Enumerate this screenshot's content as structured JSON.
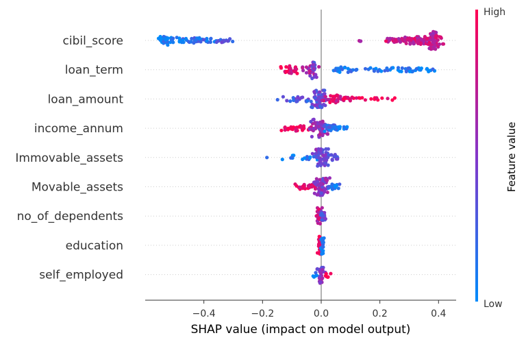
{
  "chart_data": {
    "type": "scatter",
    "subtype": "shap-beeswarm",
    "title": "",
    "xlabel": "SHAP value (impact on model output)",
    "ylabel": "",
    "xlim": [
      -0.6,
      0.46
    ],
    "x_ticks": [
      -0.4,
      -0.2,
      0.0,
      0.2,
      0.4
    ],
    "x_tick_labels": [
      "−0.4",
      "−0.2",
      "0.0",
      "0.2",
      "0.4"
    ],
    "grid": false,
    "colorbar": {
      "title": "Feature value",
      "high_label": "High",
      "low_label": "Low",
      "low_color": "#008bfb",
      "mid_color": "#8436c9",
      "high_color": "#ff0052"
    },
    "features": [
      {
        "name": "cibil_score",
        "clusters": [
          {
            "x": -0.535,
            "spread": 0.012,
            "count": 34,
            "width": 0.52,
            "value": 0.05
          },
          {
            "x": -0.5,
            "spread": 0.015,
            "count": 14,
            "width": 0.35,
            "value": 0.1
          },
          {
            "x": -0.46,
            "spread": 0.02,
            "count": 10,
            "width": 0.22,
            "value": 0.15
          },
          {
            "x": -0.4,
            "spread": 0.03,
            "count": 26,
            "width": 0.3,
            "value": 0.2
          },
          {
            "x": -0.33,
            "spread": 0.025,
            "count": 16,
            "width": 0.22,
            "value": 0.25
          },
          {
            "x": 0.13,
            "spread": 0.008,
            "count": 3,
            "width": 0.1,
            "value": 0.55
          },
          {
            "x": 0.26,
            "spread": 0.025,
            "count": 34,
            "width": 0.22,
            "value": 0.8
          },
          {
            "x": 0.33,
            "spread": 0.025,
            "count": 54,
            "width": 0.42,
            "value": 0.78
          },
          {
            "x": 0.385,
            "spread": 0.012,
            "count": 64,
            "width": 1.0,
            "value": 0.75
          }
        ]
      },
      {
        "name": "loan_term",
        "clusters": [
          {
            "x": -0.1,
            "spread": 0.015,
            "count": 28,
            "width": 0.45,
            "value": 0.88
          },
          {
            "x": -0.04,
            "spread": 0.015,
            "count": 24,
            "width": 0.55,
            "value": 0.65
          },
          {
            "x": -0.025,
            "spread": 0.006,
            "count": 16,
            "width": 1.0,
            "value": 0.4
          },
          {
            "x": 0.08,
            "spread": 0.025,
            "count": 20,
            "width": 0.3,
            "value": 0.1
          },
          {
            "x": 0.22,
            "spread": 0.05,
            "count": 26,
            "width": 0.22,
            "value": 0.06
          },
          {
            "x": 0.33,
            "spread": 0.03,
            "count": 24,
            "width": 0.22,
            "value": 0.06
          }
        ]
      },
      {
        "name": "loan_amount",
        "clusters": [
          {
            "x": -0.08,
            "spread": 0.035,
            "count": 24,
            "width": 0.3,
            "value": 0.3
          },
          {
            "x": -0.01,
            "spread": 0.015,
            "count": 60,
            "width": 1.0,
            "value": 0.4
          },
          {
            "x": 0.04,
            "spread": 0.02,
            "count": 26,
            "width": 0.45,
            "value": 0.85
          },
          {
            "x": 0.1,
            "spread": 0.02,
            "count": 16,
            "width": 0.2,
            "value": 0.95
          },
          {
            "x": 0.2,
            "spread": 0.04,
            "count": 12,
            "width": 0.15,
            "value": 0.95
          }
        ]
      },
      {
        "name": "income_annum",
        "clusters": [
          {
            "x": -0.08,
            "spread": 0.025,
            "count": 30,
            "width": 0.3,
            "value": 0.92
          },
          {
            "x": -0.01,
            "spread": 0.015,
            "count": 50,
            "width": 1.0,
            "value": 0.55
          },
          {
            "x": 0.03,
            "spread": 0.012,
            "count": 24,
            "width": 0.4,
            "value": 0.2
          },
          {
            "x": 0.075,
            "spread": 0.015,
            "count": 12,
            "width": 0.2,
            "value": 0.05
          }
        ]
      },
      {
        "name": "Immovable_assets",
        "clusters": [
          {
            "x": -0.185,
            "spread": 0.0,
            "count": 1,
            "width": 0.0,
            "value": 0.05
          },
          {
            "x": -0.07,
            "spread": 0.025,
            "count": 16,
            "width": 0.25,
            "value": 0.1
          },
          {
            "x": 0.0,
            "spread": 0.012,
            "count": 60,
            "width": 1.0,
            "value": 0.45
          },
          {
            "x": 0.045,
            "spread": 0.015,
            "count": 14,
            "width": 0.35,
            "value": 0.35
          }
        ]
      },
      {
        "name": "Movable_assets",
        "clusters": [
          {
            "x": -0.05,
            "spread": 0.02,
            "count": 26,
            "width": 0.3,
            "value": 0.9
          },
          {
            "x": 0.0,
            "spread": 0.012,
            "count": 60,
            "width": 1.0,
            "value": 0.5
          },
          {
            "x": 0.045,
            "spread": 0.015,
            "count": 18,
            "width": 0.3,
            "value": 0.1
          }
        ]
      },
      {
        "name": "no_of_dependents",
        "clusters": [
          {
            "x": -0.005,
            "spread": 0.006,
            "count": 30,
            "width": 1.0,
            "value": 0.75
          },
          {
            "x": 0.008,
            "spread": 0.004,
            "count": 20,
            "width": 0.6,
            "value": 0.35
          }
        ]
      },
      {
        "name": "education",
        "clusters": [
          {
            "x": -0.005,
            "spread": 0.003,
            "count": 24,
            "width": 1.0,
            "value": 0.9
          },
          {
            "x": 0.005,
            "spread": 0.003,
            "count": 24,
            "width": 1.0,
            "value": 0.1
          }
        ]
      },
      {
        "name": "self_employed",
        "clusters": [
          {
            "x": -0.002,
            "spread": 0.006,
            "count": 30,
            "width": 1.0,
            "value": 0.5
          },
          {
            "x": 0.022,
            "spread": 0.004,
            "count": 6,
            "width": 0.3,
            "value": 0.95
          },
          {
            "x": -0.02,
            "spread": 0.004,
            "count": 5,
            "width": 0.3,
            "value": 0.1
          }
        ]
      }
    ]
  }
}
